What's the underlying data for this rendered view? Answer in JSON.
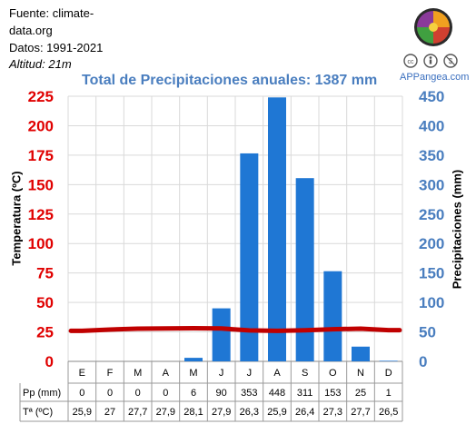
{
  "source": {
    "line1": "Fuente: climate-",
    "line2": "data.org",
    "line3": "Datos: 1991-2021",
    "line4": "Altitud: 21m"
  },
  "brand": "APPangea.com",
  "colors": {
    "bars": "#1f77d4",
    "temperature_line": "#c00000",
    "left_axis": "#e00000",
    "right_axis": "#4a7ebf"
  },
  "icons": [
    "appangea-logo-icon",
    "creative-commons-icon",
    "attribution-icon",
    "noncommercial-icon"
  ],
  "chart_data": {
    "type": "bar",
    "title": "Total de Precipitaciones anuales: 1387 mm",
    "categories": [
      "E",
      "F",
      "M",
      "A",
      "M",
      "J",
      "J",
      "A",
      "S",
      "O",
      "N",
      "D"
    ],
    "ylabel_left": "Temperatura (ºC)",
    "ylabel_right": "Precipitaciones (mm)",
    "ylim_left": [
      0,
      225
    ],
    "ylim_right": [
      0,
      450
    ],
    "yticks_left": [
      "0",
      "25",
      "50",
      "75",
      "100",
      "125",
      "150",
      "175",
      "200",
      "225"
    ],
    "yticks_right": [
      "0",
      "50",
      "100",
      "150",
      "200",
      "250",
      "300",
      "350",
      "400",
      "450"
    ],
    "grid": true,
    "series": [
      {
        "name": "Pp (mm)",
        "type": "bar",
        "axis": "right",
        "values": [
          0,
          0,
          0,
          0,
          6,
          90,
          353,
          448,
          311,
          153,
          25,
          1
        ],
        "labels": [
          "0",
          "0",
          "0",
          "0",
          "6",
          "90",
          "353",
          "448",
          "311",
          "153",
          "25",
          "1"
        ]
      },
      {
        "name": "Tª (ºC)",
        "type": "line",
        "axis": "left",
        "values": [
          25.9,
          27,
          27.7,
          27.9,
          28.1,
          27.9,
          26.3,
          25.9,
          26.4,
          27.3,
          27.7,
          26.5
        ],
        "labels": [
          "25,9",
          "27",
          "27,7",
          "27,9",
          "28,1",
          "27,9",
          "26,3",
          "25,9",
          "26,4",
          "27,3",
          "27,7",
          "26,5"
        ]
      }
    ]
  }
}
